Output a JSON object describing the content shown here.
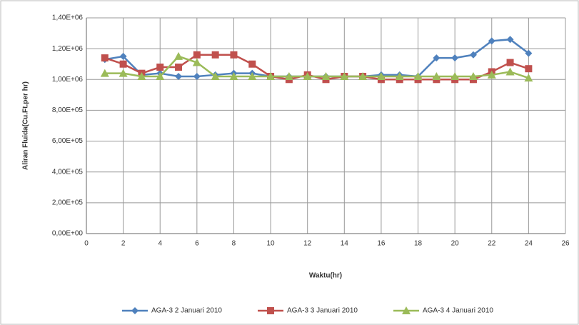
{
  "chart_data": {
    "type": "line",
    "x_label": "Waktu(hr)",
    "y_label": "Aliran Fluida(Cu.Ft.per hr)",
    "x": [
      1,
      2,
      3,
      4,
      5,
      6,
      7,
      8,
      9,
      10,
      11,
      12,
      13,
      14,
      15,
      16,
      17,
      18,
      19,
      20,
      21,
      22,
      23,
      24
    ],
    "series": [
      {
        "name": "AGA-3 2 Januari 2010",
        "color": "#4f81bd",
        "marker": "diamond",
        "values": [
          1130000,
          1150000,
          1030000,
          1040000,
          1020000,
          1020000,
          1030000,
          1040000,
          1040000,
          1020000,
          1020000,
          1020000,
          1020000,
          1020000,
          1020000,
          1030000,
          1030000,
          1020000,
          1140000,
          1140000,
          1160000,
          1250000,
          1260000,
          1170000
        ]
      },
      {
        "name": "AGA-3 3 Januari 2010",
        "color": "#c0504d",
        "marker": "square",
        "values": [
          1140000,
          1100000,
          1040000,
          1080000,
          1080000,
          1160000,
          1160000,
          1160000,
          1100000,
          1020000,
          1000000,
          1030000,
          1000000,
          1020000,
          1020000,
          1000000,
          1000000,
          1000000,
          1000000,
          1000000,
          1000000,
          1050000,
          1110000,
          1070000
        ]
      },
      {
        "name": "AGA-3 4 Januari 2010",
        "color": "#9bbb59",
        "marker": "triangle",
        "values": [
          1040000,
          1040000,
          1020000,
          1020000,
          1150000,
          1110000,
          1020000,
          1020000,
          1020000,
          1020000,
          1020000,
          1020000,
          1020000,
          1020000,
          1020000,
          1020000,
          1020000,
          1020000,
          1020000,
          1020000,
          1020000,
          1030000,
          1050000,
          1010000
        ]
      }
    ],
    "xlim": [
      0,
      26
    ],
    "xticks": [
      0,
      2,
      4,
      6,
      8,
      10,
      12,
      14,
      16,
      18,
      20,
      22,
      24,
      26
    ],
    "ylim": [
      0,
      1400000
    ],
    "yticks": [
      {
        "value": 0,
        "label": "0,00E+00"
      },
      {
        "value": 200000,
        "label": "2,00E+05"
      },
      {
        "value": 400000,
        "label": "4,00E+05"
      },
      {
        "value": 600000,
        "label": "6,00E+05"
      },
      {
        "value": 800000,
        "label": "8,00E+05"
      },
      {
        "value": 1000000,
        "label": "1,00E+06"
      },
      {
        "value": 1200000,
        "label": "1,20E+06"
      },
      {
        "value": 1400000,
        "label": "1,40E+06"
      }
    ],
    "grid": true,
    "legend": "bottom"
  }
}
